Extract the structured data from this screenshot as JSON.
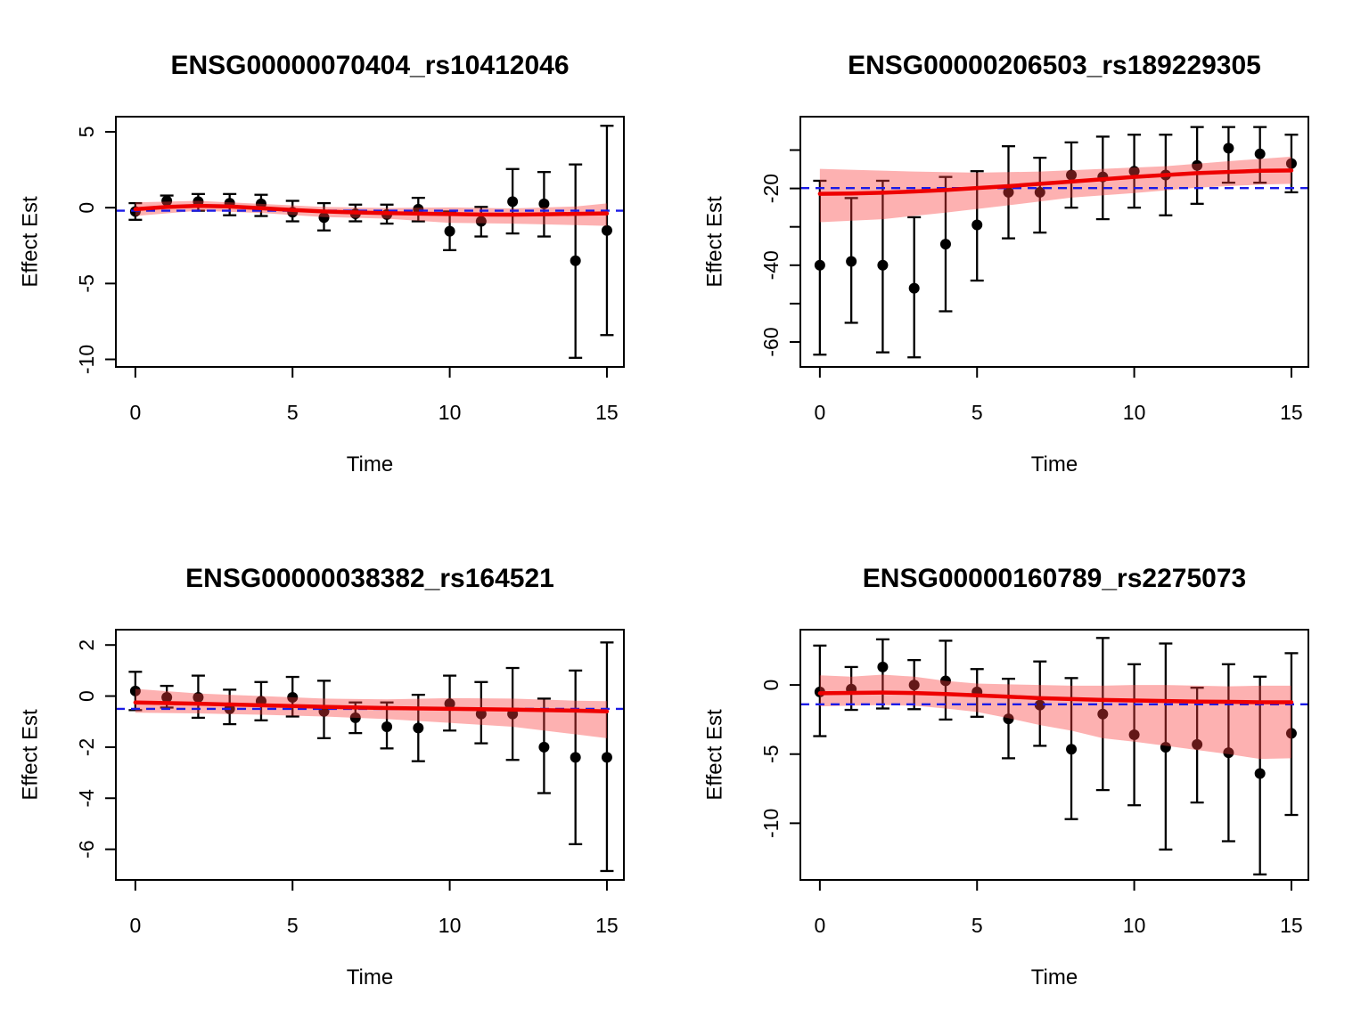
{
  "page": {
    "background": "#FFFFFF"
  },
  "colors": {
    "point": "#000000",
    "error_bar": "#000000",
    "trend_line": "#EE0000",
    "confidence_band": "rgba(250,60,60,0.40)",
    "reference_line": "#1A1AE6",
    "frame": "#000000"
  },
  "chart_data": [
    {
      "type": "scatter-errorbar-smooth",
      "title": "ENSG00000070404_rs10412046",
      "xlabel": "Time",
      "ylabel": "Effect Est",
      "xlim": [
        -0.62,
        15.54
      ],
      "ylim": [
        -10.5,
        6.0
      ],
      "xticks": [
        0,
        5,
        10,
        15
      ],
      "yticks": [
        {
          "v": 5,
          "label": "5"
        },
        {
          "v": 0,
          "label": "0"
        },
        {
          "v": -5,
          "label": "-5"
        },
        {
          "v": -10,
          "label": "-10"
        }
      ],
      "reference_y": -0.2,
      "grid": false,
      "points": [
        {
          "t": 0,
          "est": -0.25,
          "lo": -0.8,
          "hi": 0.3
        },
        {
          "t": 1,
          "est": 0.45,
          "lo": 0.05,
          "hi": 0.8
        },
        {
          "t": 2,
          "est": 0.4,
          "lo": -0.2,
          "hi": 0.9
        },
        {
          "t": 3,
          "est": 0.3,
          "lo": -0.5,
          "hi": 0.9
        },
        {
          "t": 4,
          "est": 0.25,
          "lo": -0.55,
          "hi": 0.85
        },
        {
          "t": 5,
          "est": -0.3,
          "lo": -0.9,
          "hi": 0.45
        },
        {
          "t": 6,
          "est": -0.65,
          "lo": -1.5,
          "hi": 0.3
        },
        {
          "t": 7,
          "est": -0.4,
          "lo": -0.9,
          "hi": 0.2
        },
        {
          "t": 8,
          "est": -0.45,
          "lo": -1.05,
          "hi": 0.2
        },
        {
          "t": 9,
          "est": -0.1,
          "lo": -0.9,
          "hi": 0.65
        },
        {
          "t": 10,
          "est": -1.55,
          "lo": -2.8,
          "hi": -0.25
        },
        {
          "t": 11,
          "est": -0.9,
          "lo": -1.9,
          "hi": 0.05
        },
        {
          "t": 12,
          "est": 0.4,
          "lo": -1.7,
          "hi": 2.55
        },
        {
          "t": 13,
          "est": 0.25,
          "lo": -1.9,
          "hi": 2.35
        },
        {
          "t": 14,
          "est": -3.5,
          "lo": -9.9,
          "hi": 2.85
        },
        {
          "t": 15,
          "est": -1.5,
          "lo": -8.4,
          "hi": 5.4
        }
      ],
      "trend": [
        [
          0,
          -0.1
        ],
        [
          1,
          0.05
        ],
        [
          2,
          0.12
        ],
        [
          3,
          0.08
        ],
        [
          4,
          -0.03
        ],
        [
          5,
          -0.15
        ],
        [
          6,
          -0.25
        ],
        [
          7,
          -0.31
        ],
        [
          8,
          -0.36
        ],
        [
          9,
          -0.39
        ],
        [
          10,
          -0.42
        ],
        [
          11,
          -0.45
        ],
        [
          12,
          -0.46
        ],
        [
          13,
          -0.44
        ],
        [
          14,
          -0.41
        ],
        [
          15,
          -0.38
        ]
      ],
      "band_upper": [
        [
          0,
          0.35
        ],
        [
          2,
          0.45
        ],
        [
          4,
          0.25
        ],
        [
          6,
          0.05
        ],
        [
          8,
          -0.02
        ],
        [
          10,
          0.02
        ],
        [
          12,
          -0.05
        ],
        [
          14,
          0.08
        ],
        [
          15,
          0.28
        ]
      ],
      "band_lower": [
        [
          0,
          -0.55
        ],
        [
          2,
          -0.2
        ],
        [
          4,
          -0.35
        ],
        [
          6,
          -0.62
        ],
        [
          8,
          -0.72
        ],
        [
          10,
          -1.0
        ],
        [
          12,
          -1.05
        ],
        [
          14,
          -1.15
        ],
        [
          15,
          -1.2
        ]
      ]
    },
    {
      "type": "scatter-errorbar-smooth",
      "title": "ENSG00000206503_rs189229305",
      "xlabel": "Time",
      "ylabel": "Effect Est",
      "xlim": [
        -0.62,
        15.54
      ],
      "ylim": [
        -66.5,
        -1.3
      ],
      "xticks": [
        0,
        5,
        10,
        15
      ],
      "yticks": [
        {
          "v": -10,
          "label": ""
        },
        {
          "v": -20,
          "label": "-20"
        },
        {
          "v": -30,
          "label": ""
        },
        {
          "v": -40,
          "label": "-40"
        },
        {
          "v": -50,
          "label": ""
        },
        {
          "v": -60,
          "label": "-60"
        }
      ],
      "reference_y": -19.9,
      "grid": false,
      "points": [
        {
          "t": 0,
          "est": -40,
          "lo": -63.3,
          "hi": -18
        },
        {
          "t": 1,
          "est": -39,
          "lo": -55,
          "hi": -22.5
        },
        {
          "t": 2,
          "est": -40,
          "lo": -62.7,
          "hi": -18
        },
        {
          "t": 3,
          "est": -46,
          "lo": -64,
          "hi": -27.5
        },
        {
          "t": 4,
          "est": -34.5,
          "lo": -52,
          "hi": -17
        },
        {
          "t": 5,
          "est": -29.5,
          "lo": -44,
          "hi": -15.5
        },
        {
          "t": 6,
          "est": -21,
          "lo": -33,
          "hi": -9
        },
        {
          "t": 7,
          "est": -21,
          "lo": -31.5,
          "hi": -12
        },
        {
          "t": 8,
          "est": -16.5,
          "lo": -25,
          "hi": -8
        },
        {
          "t": 9,
          "est": -17,
          "lo": -28,
          "hi": -6.5
        },
        {
          "t": 10,
          "est": -15.5,
          "lo": -25,
          "hi": -6
        },
        {
          "t": 11,
          "est": -16.5,
          "lo": -27,
          "hi": -6
        },
        {
          "t": 12,
          "est": -14,
          "lo": -24,
          "hi": -4
        },
        {
          "t": 13,
          "est": -9.5,
          "lo": -18.5,
          "hi": -4
        },
        {
          "t": 14,
          "est": -11,
          "lo": -18.5,
          "hi": -4
        },
        {
          "t": 15,
          "est": -13.5,
          "lo": -21,
          "hi": -6
        }
      ],
      "trend": [
        [
          0,
          -21.4
        ],
        [
          1,
          -21.3
        ],
        [
          2,
          -21.1
        ],
        [
          3,
          -20.8
        ],
        [
          4,
          -20.4
        ],
        [
          5,
          -19.9
        ],
        [
          6,
          -19.4
        ],
        [
          7,
          -18.8
        ],
        [
          8,
          -18.2
        ],
        [
          9,
          -17.6
        ],
        [
          10,
          -17.0
        ],
        [
          11,
          -16.5
        ],
        [
          12,
          -16.0
        ],
        [
          13,
          -15.7
        ],
        [
          14,
          -15.4
        ],
        [
          15,
          -15.3
        ]
      ],
      "band_upper": [
        [
          0,
          -14.9
        ],
        [
          3,
          -15.6
        ],
        [
          5,
          -15.9
        ],
        [
          7,
          -15.6
        ],
        [
          9,
          -14.9
        ],
        [
          11,
          -14.2
        ],
        [
          13,
          -12.9
        ],
        [
          15,
          -11.7
        ]
      ],
      "band_lower": [
        [
          0,
          -28.8
        ],
        [
          2,
          -28.0
        ],
        [
          4,
          -26.3
        ],
        [
          6,
          -24.4
        ],
        [
          8,
          -22.4
        ],
        [
          10,
          -21.2
        ],
        [
          12,
          -19.8
        ],
        [
          14,
          -19.0
        ],
        [
          15,
          -18.8
        ]
      ]
    },
    {
      "type": "scatter-errorbar-smooth",
      "title": "ENSG00000038382_rs164521",
      "xlabel": "Time",
      "ylabel": "Effect Est",
      "xlim": [
        -0.62,
        15.54
      ],
      "ylim": [
        -7.2,
        2.6
      ],
      "xticks": [
        0,
        5,
        10,
        15
      ],
      "yticks": [
        {
          "v": 2,
          "label": "2"
        },
        {
          "v": 0,
          "label": "0"
        },
        {
          "v": -2,
          "label": "-2"
        },
        {
          "v": -4,
          "label": "-4"
        },
        {
          "v": -6,
          "label": "-6"
        }
      ],
      "reference_y": -0.5,
      "grid": false,
      "points": [
        {
          "t": 0,
          "est": 0.2,
          "lo": -0.55,
          "hi": 0.95
        },
        {
          "t": 1,
          "est": -0.05,
          "lo": -0.45,
          "hi": 0.4
        },
        {
          "t": 2,
          "est": -0.05,
          "lo": -0.85,
          "hi": 0.8
        },
        {
          "t": 3,
          "est": -0.5,
          "lo": -1.1,
          "hi": 0.25
        },
        {
          "t": 4,
          "est": -0.2,
          "lo": -0.95,
          "hi": 0.55
        },
        {
          "t": 5,
          "est": -0.05,
          "lo": -0.8,
          "hi": 0.75
        },
        {
          "t": 6,
          "est": -0.6,
          "lo": -1.65,
          "hi": 0.6
        },
        {
          "t": 7,
          "est": -0.85,
          "lo": -1.45,
          "hi": -0.25
        },
        {
          "t": 8,
          "est": -1.2,
          "lo": -2.05,
          "hi": -0.25
        },
        {
          "t": 9,
          "est": -1.25,
          "lo": -2.55,
          "hi": 0.05
        },
        {
          "t": 10,
          "est": -0.3,
          "lo": -1.35,
          "hi": 0.8
        },
        {
          "t": 11,
          "est": -0.7,
          "lo": -1.85,
          "hi": 0.55
        },
        {
          "t": 12,
          "est": -0.7,
          "lo": -2.5,
          "hi": 1.1
        },
        {
          "t": 13,
          "est": -2.0,
          "lo": -3.8,
          "hi": -0.1
        },
        {
          "t": 14,
          "est": -2.4,
          "lo": -5.8,
          "hi": 1.0
        },
        {
          "t": 15,
          "est": -2.4,
          "lo": -6.85,
          "hi": 2.1
        }
      ],
      "trend": [
        [
          0,
          -0.25
        ],
        [
          2,
          -0.3
        ],
        [
          4,
          -0.36
        ],
        [
          6,
          -0.42
        ],
        [
          8,
          -0.47
        ],
        [
          10,
          -0.5
        ],
        [
          12,
          -0.53
        ],
        [
          14,
          -0.57
        ],
        [
          15,
          -0.6
        ]
      ],
      "band_upper": [
        [
          0,
          0.28
        ],
        [
          2,
          0.1
        ],
        [
          4,
          0.0
        ],
        [
          6,
          -0.1
        ],
        [
          8,
          -0.13
        ],
        [
          10,
          -0.08
        ],
        [
          12,
          -0.1
        ],
        [
          14,
          -0.18
        ],
        [
          15,
          -0.2
        ]
      ],
      "band_lower": [
        [
          0,
          -0.65
        ],
        [
          2,
          -0.68
        ],
        [
          4,
          -0.73
        ],
        [
          6,
          -0.8
        ],
        [
          8,
          -0.9
        ],
        [
          10,
          -1.05
        ],
        [
          12,
          -1.2
        ],
        [
          14,
          -1.5
        ],
        [
          15,
          -1.65
        ]
      ]
    },
    {
      "type": "scatter-errorbar-smooth",
      "title": "ENSG00000160789_rs2275073",
      "xlabel": "Time",
      "ylabel": "Effect Est",
      "xlim": [
        -0.62,
        15.54
      ],
      "ylim": [
        -14.1,
        4.0
      ],
      "xticks": [
        0,
        5,
        10,
        15
      ],
      "yticks": [
        {
          "v": 0,
          "label": "0"
        },
        {
          "v": -5,
          "label": "-5"
        },
        {
          "v": -10,
          "label": "-10"
        }
      ],
      "reference_y": -1.4,
      "grid": false,
      "points": [
        {
          "t": 0,
          "est": -0.5,
          "lo": -3.7,
          "hi": 2.85
        },
        {
          "t": 1,
          "est": -0.3,
          "lo": -1.8,
          "hi": 1.3
        },
        {
          "t": 2,
          "est": 1.3,
          "lo": -1.7,
          "hi": 3.3
        },
        {
          "t": 3,
          "est": 0.0,
          "lo": -1.75,
          "hi": 1.8
        },
        {
          "t": 4,
          "est": 0.3,
          "lo": -2.5,
          "hi": 3.2
        },
        {
          "t": 5,
          "est": -0.5,
          "lo": -2.3,
          "hi": 1.15
        },
        {
          "t": 6,
          "est": -2.45,
          "lo": -5.3,
          "hi": 0.45
        },
        {
          "t": 7,
          "est": -1.45,
          "lo": -4.4,
          "hi": 1.7
        },
        {
          "t": 8,
          "est": -4.65,
          "lo": -9.7,
          "hi": 0.5
        },
        {
          "t": 9,
          "est": -2.1,
          "lo": -7.6,
          "hi": 3.4
        },
        {
          "t": 10,
          "est": -3.6,
          "lo": -8.7,
          "hi": 1.5
        },
        {
          "t": 11,
          "est": -4.5,
          "lo": -11.9,
          "hi": 3.0
        },
        {
          "t": 12,
          "est": -4.3,
          "lo": -8.5,
          "hi": -0.2
        },
        {
          "t": 13,
          "est": -4.9,
          "lo": -11.3,
          "hi": 1.5
        },
        {
          "t": 14,
          "est": -6.4,
          "lo": -13.7,
          "hi": 0.6
        },
        {
          "t": 15,
          "est": -3.5,
          "lo": -9.4,
          "hi": 2.3
        }
      ],
      "trend": [
        [
          0,
          -0.6
        ],
        [
          1,
          -0.57
        ],
        [
          2,
          -0.55
        ],
        [
          3,
          -0.58
        ],
        [
          4,
          -0.65
        ],
        [
          5,
          -0.75
        ],
        [
          6,
          -0.85
        ],
        [
          7,
          -0.95
        ],
        [
          8,
          -1.02
        ],
        [
          9,
          -1.08
        ],
        [
          10,
          -1.12
        ],
        [
          11,
          -1.16
        ],
        [
          12,
          -1.2
        ],
        [
          13,
          -1.22
        ],
        [
          14,
          -1.25
        ],
        [
          15,
          -1.25
        ]
      ],
      "band_upper": [
        [
          0,
          0.7
        ],
        [
          1,
          0.6
        ],
        [
          2,
          0.75
        ],
        [
          3,
          0.6
        ],
        [
          4,
          0.3
        ],
        [
          5,
          0.1
        ],
        [
          6,
          0.05
        ],
        [
          7,
          0.0
        ],
        [
          8,
          -0.05
        ],
        [
          9,
          -0.05
        ],
        [
          10,
          0.0
        ],
        [
          11,
          0.0
        ],
        [
          12,
          -0.05
        ],
        [
          13,
          -0.1
        ],
        [
          14,
          -0.05
        ],
        [
          15,
          -0.05
        ]
      ],
      "band_lower": [
        [
          0,
          -1.55
        ],
        [
          1,
          -1.5
        ],
        [
          2,
          -1.45
        ],
        [
          3,
          -1.5
        ],
        [
          4,
          -1.7
        ],
        [
          5,
          -1.95
        ],
        [
          6,
          -2.4
        ],
        [
          7,
          -2.9
        ],
        [
          8,
          -3.3
        ],
        [
          9,
          -3.85
        ],
        [
          10,
          -4.1
        ],
        [
          11,
          -4.4
        ],
        [
          12,
          -4.7
        ],
        [
          13,
          -5.0
        ],
        [
          14,
          -5.35
        ],
        [
          15,
          -5.3
        ]
      ]
    }
  ]
}
